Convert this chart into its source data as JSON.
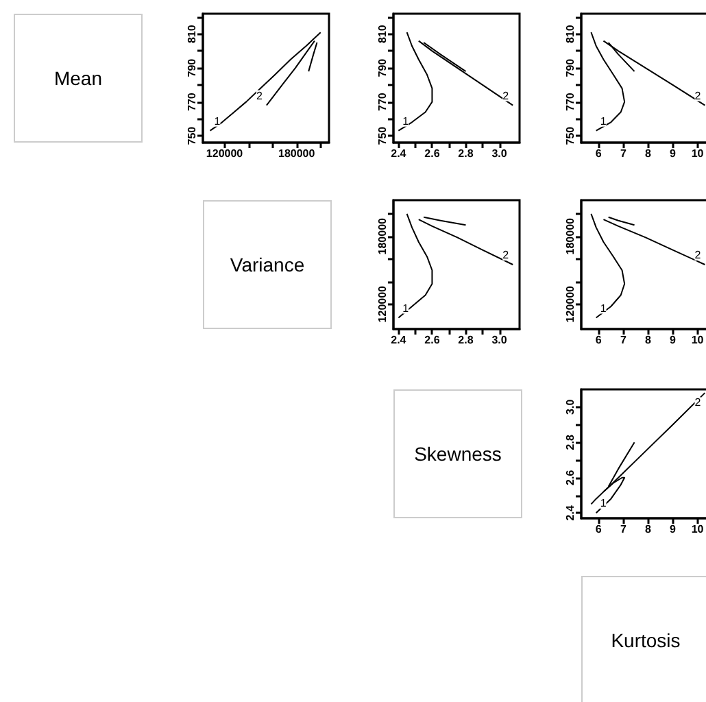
{
  "chart_data": [
    {
      "type": "other",
      "title": "Mean"
    },
    {
      "type": "line",
      "xlim": [
        102000,
        207000
      ],
      "ylim": [
        746,
        822
      ],
      "xticks": [
        120000,
        {
          "value": 140000,
          "label": null
        },
        {
          "value": 160000,
          "label": null
        },
        180000,
        {
          "value": 200000,
          "label": null
        }
      ],
      "yticks": [
        750,
        {
          "value": 760,
          "label": null
        },
        770,
        {
          "value": 780,
          "label": null
        },
        790,
        {
          "value": 800,
          "label": null
        },
        810,
        {
          "value": 820,
          "label": null
        }
      ],
      "series": [
        {
          "name": "1",
          "color": "#000000",
          "x": [
            108000,
            118000,
            128000,
            138000,
            150000,
            162000,
            175000,
            188000,
            200000
          ],
          "values": [
            753,
            758,
            764,
            770,
            778,
            786,
            795,
            803,
            811
          ]
        },
        {
          "name": "2",
          "color": "#000000",
          "x": [
            155000,
            168000,
            179000,
            189000,
            195000
          ],
          "values": [
            768,
            780,
            790,
            800,
            806
          ]
        },
        {
          "color": "#000000",
          "x": [
            190000,
            194000,
            197000
          ],
          "values": [
            788,
            798,
            805
          ]
        }
      ]
    },
    {
      "type": "line",
      "xlim": [
        2.37,
        3.12
      ],
      "ylim": [
        746,
        822
      ],
      "xticks": [
        2.4,
        {
          "value": 2.5,
          "label": null
        },
        2.6,
        {
          "value": 2.7,
          "label": null
        },
        2.8,
        {
          "value": 2.9,
          "label": null
        },
        {
          "value": 3,
          "label": "3.0"
        }
      ],
      "yticks": [
        750,
        {
          "value": 760,
          "label": null
        },
        770,
        {
          "value": 780,
          "label": null
        },
        790,
        {
          "value": 800,
          "label": null
        },
        810,
        {
          "value": 820,
          "label": null
        }
      ],
      "series": [
        {
          "name": "1",
          "color": "#000000",
          "x": [
            2.4,
            2.48,
            2.56,
            2.6,
            2.6,
            2.57,
            2.52,
            2.48,
            2.45
          ],
          "values": [
            753,
            758,
            764,
            770,
            778,
            786,
            795,
            803,
            811
          ]
        },
        {
          "name": "2",
          "color": "#000000",
          "x": [
            3.08,
            2.9,
            2.75,
            2.6,
            2.52
          ],
          "values": [
            768,
            780,
            790,
            800,
            806
          ]
        },
        {
          "color": "#000000",
          "x": [
            2.8,
            2.65,
            2.55
          ],
          "values": [
            788,
            798,
            805
          ]
        }
      ]
    },
    {
      "type": "line",
      "xlim": [
        5.3,
        10.4
      ],
      "ylim": [
        746,
        822
      ],
      "xticks": [
        6,
        7,
        8,
        9,
        10
      ],
      "yticks": [
        750,
        {
          "value": 760,
          "label": null
        },
        770,
        {
          "value": 780,
          "label": null
        },
        790,
        {
          "value": 800,
          "label": null
        },
        810,
        {
          "value": 820,
          "label": null
        }
      ],
      "series": [
        {
          "name": "1",
          "color": "#000000",
          "x": [
            5.9,
            6.5,
            6.9,
            7.05,
            6.95,
            6.6,
            6.2,
            5.9,
            5.7
          ],
          "values": [
            753,
            758,
            764,
            770,
            778,
            786,
            795,
            803,
            811
          ]
        },
        {
          "name": "2",
          "color": "#000000",
          "x": [
            10.3,
            9.0,
            7.9,
            6.8,
            6.2
          ],
          "values": [
            768,
            780,
            790,
            800,
            806
          ]
        },
        {
          "color": "#000000",
          "x": [
            7.45,
            6.8,
            6.4
          ],
          "values": [
            788,
            798,
            805
          ]
        }
      ]
    },
    {
      "type": "other",
      "title": "Variance"
    },
    {
      "type": "line",
      "xlim": [
        2.37,
        3.12
      ],
      "ylim": [
        98000,
        212000
      ],
      "xticks": [
        2.4,
        {
          "value": 2.5,
          "label": null
        },
        2.6,
        {
          "value": 2.7,
          "label": null
        },
        2.8,
        {
          "value": 2.9,
          "label": null
        },
        {
          "value": 3,
          "label": "3.0"
        }
      ],
      "yticks": [
        120000,
        {
          "value": 140000,
          "label": null
        },
        {
          "value": 160000,
          "label": null
        },
        180000,
        {
          "value": 200000,
          "label": null
        }
      ],
      "series": [
        {
          "name": "1",
          "color": "#000000",
          "x": [
            2.4,
            2.48,
            2.56,
            2.6,
            2.6,
            2.57,
            2.52,
            2.48,
            2.45
          ],
          "values": [
            108000,
            118000,
            128000,
            138000,
            150000,
            162000,
            175000,
            188000,
            200000
          ]
        },
        {
          "name": "2",
          "color": "#000000",
          "x": [
            3.08,
            2.9,
            2.75,
            2.6,
            2.52
          ],
          "values": [
            155000,
            168000,
            179000,
            189000,
            195000
          ]
        },
        {
          "color": "#000000",
          "x": [
            2.8,
            2.65,
            2.55
          ],
          "values": [
            190000,
            194000,
            197000
          ]
        }
      ]
    },
    {
      "type": "line",
      "xlim": [
        5.3,
        10.4
      ],
      "ylim": [
        98000,
        212000
      ],
      "xticks": [
        6,
        7,
        8,
        9,
        10
      ],
      "yticks": [
        120000,
        {
          "value": 140000,
          "label": null
        },
        {
          "value": 160000,
          "label": null
        },
        180000,
        {
          "value": 200000,
          "label": null
        }
      ],
      "series": [
        {
          "name": "1",
          "color": "#000000",
          "x": [
            5.9,
            6.5,
            6.9,
            7.05,
            6.95,
            6.6,
            6.2,
            5.9,
            5.7
          ],
          "values": [
            108000,
            118000,
            128000,
            138000,
            150000,
            162000,
            175000,
            188000,
            200000
          ]
        },
        {
          "name": "2",
          "color": "#000000",
          "x": [
            10.3,
            9.0,
            7.9,
            6.8,
            6.2
          ],
          "values": [
            155000,
            168000,
            179000,
            189000,
            195000
          ]
        },
        {
          "color": "#000000",
          "x": [
            7.45,
            6.8,
            6.4
          ],
          "values": [
            190000,
            194000,
            197000
          ]
        }
      ]
    },
    {
      "type": "other",
      "title": "Skewness"
    },
    {
      "type": "line",
      "xlim": [
        5.3,
        10.4
      ],
      "ylim": [
        2.37,
        3.1
      ],
      "xticks": [
        6,
        7,
        8,
        9,
        10
      ],
      "yticks": [
        2.4,
        {
          "value": 2.5,
          "label": null
        },
        2.6,
        {
          "value": 2.7,
          "label": null
        },
        2.8,
        {
          "value": 2.9,
          "label": null
        },
        {
          "value": 3,
          "label": "3.0"
        }
      ],
      "series": [
        {
          "name": "1",
          "color": "#000000",
          "x": [
            5.9,
            6.5,
            6.9,
            7.05,
            6.95,
            6.6,
            6.2,
            5.9,
            5.7
          ],
          "values": [
            2.4,
            2.48,
            2.56,
            2.6,
            2.6,
            2.57,
            2.52,
            2.48,
            2.45
          ]
        },
        {
          "name": "2",
          "color": "#000000",
          "x": [
            10.3,
            9.0,
            7.9,
            6.8,
            6.2
          ],
          "values": [
            3.08,
            2.9,
            2.75,
            2.6,
            2.52
          ]
        },
        {
          "color": "#000000",
          "x": [
            7.45,
            6.8,
            6.4
          ],
          "values": [
            2.8,
            2.65,
            2.55
          ]
        }
      ]
    },
    {
      "type": "other",
      "title": "Kurtosis"
    }
  ]
}
